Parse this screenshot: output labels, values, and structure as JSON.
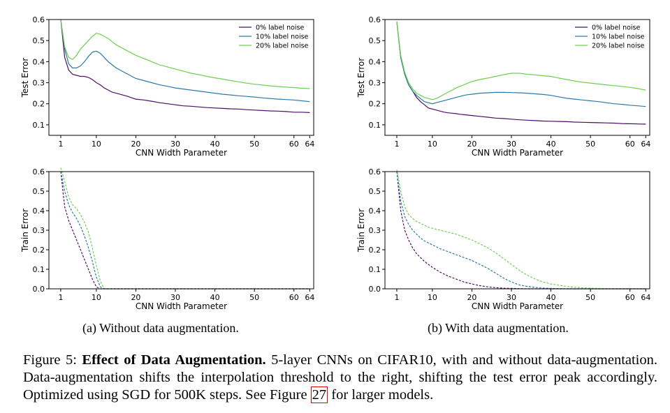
{
  "colors": {
    "noise0": "#4b0e63",
    "noise10": "#2a79a8",
    "noise20": "#6fcf52",
    "ref": "#e00000"
  },
  "chart_data": [
    {
      "type": "line",
      "id": "a-test",
      "xlabel": "CNN Width Parameter",
      "ylabel": "Test Error",
      "xlim": [
        -2,
        65
      ],
      "ylim": [
        0.05,
        0.6
      ],
      "xticks": [
        1,
        10,
        20,
        30,
        40,
        50,
        60,
        64
      ],
      "yticks": [
        0.1,
        0.2,
        0.3,
        0.4,
        0.5,
        0.6
      ],
      "ytick_labels": [
        "0.1",
        "0.2",
        "0.3",
        "0.4",
        "0.5",
        "0.6"
      ],
      "linestyle": "solid",
      "legend": [
        "0% label noise",
        "10% label noise",
        "20% label noise"
      ],
      "series": [
        {
          "name": "0% label noise",
          "x": [
            1,
            2,
            3,
            4,
            5,
            6,
            7,
            8,
            9,
            10,
            11,
            12,
            13,
            14,
            15,
            16,
            17,
            18,
            19,
            20,
            22,
            24,
            26,
            28,
            30,
            32,
            34,
            36,
            38,
            40,
            42,
            44,
            46,
            48,
            50,
            52,
            54,
            56,
            58,
            60,
            62,
            64
          ],
          "y": [
            0.6,
            0.42,
            0.36,
            0.34,
            0.335,
            0.33,
            0.33,
            0.325,
            0.315,
            0.3,
            0.29,
            0.275,
            0.265,
            0.255,
            0.25,
            0.245,
            0.24,
            0.235,
            0.228,
            0.222,
            0.218,
            0.212,
            0.205,
            0.2,
            0.195,
            0.19,
            0.188,
            0.185,
            0.182,
            0.18,
            0.178,
            0.176,
            0.175,
            0.172,
            0.17,
            0.168,
            0.166,
            0.165,
            0.163,
            0.16,
            0.16,
            0.158
          ]
        },
        {
          "name": "10% label noise",
          "x": [
            1,
            2,
            3,
            4,
            5,
            6,
            7,
            8,
            9,
            10,
            11,
            12,
            13,
            14,
            15,
            16,
            17,
            18,
            19,
            20,
            22,
            24,
            26,
            28,
            30,
            32,
            34,
            36,
            38,
            40,
            42,
            44,
            46,
            48,
            50,
            52,
            54,
            56,
            58,
            60,
            62,
            64
          ],
          "y": [
            0.6,
            0.46,
            0.39,
            0.37,
            0.37,
            0.38,
            0.4,
            0.425,
            0.445,
            0.45,
            0.44,
            0.42,
            0.4,
            0.385,
            0.37,
            0.36,
            0.35,
            0.34,
            0.33,
            0.32,
            0.31,
            0.3,
            0.29,
            0.283,
            0.275,
            0.27,
            0.265,
            0.26,
            0.255,
            0.25,
            0.245,
            0.242,
            0.238,
            0.235,
            0.232,
            0.228,
            0.225,
            0.222,
            0.22,
            0.218,
            0.214,
            0.21
          ]
        },
        {
          "name": "20% label noise",
          "x": [
            1,
            2,
            3,
            4,
            5,
            6,
            7,
            8,
            9,
            10,
            11,
            12,
            13,
            14,
            15,
            16,
            17,
            18,
            19,
            20,
            22,
            24,
            26,
            28,
            30,
            32,
            34,
            36,
            38,
            40,
            42,
            44,
            46,
            48,
            50,
            52,
            54,
            56,
            58,
            60,
            62,
            64
          ],
          "y": [
            0.6,
            0.47,
            0.42,
            0.41,
            0.43,
            0.46,
            0.48,
            0.5,
            0.52,
            0.535,
            0.53,
            0.52,
            0.51,
            0.495,
            0.48,
            0.47,
            0.46,
            0.45,
            0.44,
            0.43,
            0.415,
            0.4,
            0.385,
            0.375,
            0.365,
            0.355,
            0.345,
            0.338,
            0.33,
            0.323,
            0.317,
            0.31,
            0.304,
            0.298,
            0.293,
            0.289,
            0.285,
            0.282,
            0.279,
            0.277,
            0.274,
            0.272
          ]
        }
      ]
    },
    {
      "type": "line",
      "id": "b-test",
      "xlabel": "CNN Width Parameter",
      "ylabel": "Test Error",
      "xlim": [
        -2,
        65
      ],
      "ylim": [
        0.05,
        0.6
      ],
      "xticks": [
        1,
        10,
        20,
        30,
        40,
        50,
        60,
        64
      ],
      "yticks": [
        0.1,
        0.2,
        0.3,
        0.4,
        0.5,
        0.6
      ],
      "ytick_labels": [
        "0.1",
        "0.2",
        "0.3",
        "0.4",
        "0.5",
        "0.6"
      ],
      "linestyle": "solid",
      "legend": [
        "0% label noise",
        "10% label noise",
        "20% label noise"
      ],
      "series": [
        {
          "name": "0% label noise",
          "x": [
            1,
            2,
            3,
            4,
            5,
            6,
            7,
            8,
            9,
            10,
            11,
            12,
            13,
            14,
            15,
            16,
            17,
            18,
            19,
            20,
            22,
            24,
            26,
            28,
            30,
            32,
            34,
            36,
            38,
            40,
            42,
            44,
            46,
            48,
            50,
            52,
            54,
            56,
            58,
            60,
            62,
            64
          ],
          "y": [
            0.59,
            0.42,
            0.34,
            0.29,
            0.26,
            0.23,
            0.21,
            0.195,
            0.18,
            0.175,
            0.17,
            0.165,
            0.16,
            0.157,
            0.155,
            0.153,
            0.15,
            0.148,
            0.146,
            0.144,
            0.14,
            0.136,
            0.132,
            0.13,
            0.127,
            0.124,
            0.122,
            0.12,
            0.118,
            0.117,
            0.116,
            0.115,
            0.113,
            0.112,
            0.111,
            0.11,
            0.109,
            0.108,
            0.106,
            0.105,
            0.104,
            0.103
          ]
        },
        {
          "name": "10% label noise",
          "x": [
            1,
            2,
            3,
            4,
            5,
            6,
            7,
            8,
            9,
            10,
            11,
            12,
            13,
            14,
            15,
            16,
            17,
            18,
            19,
            20,
            22,
            24,
            26,
            28,
            30,
            32,
            34,
            36,
            38,
            40,
            42,
            44,
            46,
            48,
            50,
            52,
            54,
            56,
            58,
            60,
            62,
            64
          ],
          "y": [
            0.59,
            0.42,
            0.34,
            0.29,
            0.26,
            0.24,
            0.225,
            0.21,
            0.205,
            0.2,
            0.205,
            0.21,
            0.215,
            0.22,
            0.225,
            0.23,
            0.235,
            0.24,
            0.243,
            0.245,
            0.25,
            0.252,
            0.254,
            0.254,
            0.253,
            0.252,
            0.25,
            0.247,
            0.244,
            0.24,
            0.233,
            0.226,
            0.222,
            0.218,
            0.214,
            0.21,
            0.205,
            0.2,
            0.197,
            0.193,
            0.19,
            0.187
          ]
        },
        {
          "name": "20% label noise",
          "x": [
            1,
            2,
            3,
            4,
            5,
            6,
            7,
            8,
            9,
            10,
            11,
            12,
            13,
            14,
            15,
            16,
            17,
            18,
            19,
            20,
            22,
            24,
            26,
            28,
            30,
            32,
            34,
            36,
            38,
            40,
            42,
            44,
            46,
            48,
            50,
            52,
            54,
            56,
            58,
            60,
            62,
            64
          ],
          "y": [
            0.59,
            0.43,
            0.35,
            0.3,
            0.27,
            0.25,
            0.24,
            0.23,
            0.225,
            0.22,
            0.225,
            0.235,
            0.245,
            0.255,
            0.265,
            0.275,
            0.283,
            0.29,
            0.298,
            0.305,
            0.315,
            0.322,
            0.33,
            0.338,
            0.345,
            0.345,
            0.34,
            0.337,
            0.333,
            0.33,
            0.322,
            0.315,
            0.308,
            0.302,
            0.298,
            0.294,
            0.29,
            0.286,
            0.282,
            0.278,
            0.272,
            0.265
          ]
        }
      ]
    },
    {
      "type": "line",
      "id": "a-train",
      "xlabel": "CNN Width Parameter",
      "ylabel": "Train Error",
      "xlim": [
        -2,
        65
      ],
      "ylim": [
        0.0,
        0.6
      ],
      "xticks": [
        1,
        10,
        20,
        30,
        40,
        50,
        60,
        64
      ],
      "yticks": [
        0.0,
        0.1,
        0.2,
        0.3,
        0.4,
        0.5,
        0.6
      ],
      "ytick_labels": [
        "0.0",
        "0.1",
        "0.2",
        "0.3",
        "0.4",
        "0.5",
        "0.6"
      ],
      "linestyle": "dashed",
      "series": [
        {
          "name": "0% label noise",
          "x": [
            1,
            2,
            3,
            4,
            5,
            6,
            7,
            8,
            9,
            10,
            11,
            12,
            14,
            20,
            30,
            40,
            50,
            60,
            64
          ],
          "y": [
            0.6,
            0.42,
            0.35,
            0.3,
            0.25,
            0.2,
            0.15,
            0.1,
            0.05,
            0.01,
            0.0,
            0.0,
            0.0,
            0.0,
            0.0,
            0.0,
            0.0,
            0.0,
            0.0
          ]
        },
        {
          "name": "10% label noise",
          "x": [
            1,
            2,
            3,
            4,
            5,
            6,
            7,
            8,
            9,
            10,
            11,
            12,
            14,
            20,
            30,
            40,
            50,
            60,
            64
          ],
          "y": [
            0.6,
            0.5,
            0.43,
            0.39,
            0.36,
            0.32,
            0.27,
            0.21,
            0.14,
            0.06,
            0.01,
            0.0,
            0.0,
            0.0,
            0.0,
            0.0,
            0.0,
            0.0,
            0.0
          ]
        },
        {
          "name": "20% label noise",
          "x": [
            1,
            2,
            3,
            4,
            5,
            6,
            7,
            8,
            9,
            10,
            11,
            12,
            14,
            20,
            30,
            40,
            50,
            60,
            64
          ],
          "y": [
            0.62,
            0.55,
            0.47,
            0.43,
            0.41,
            0.38,
            0.34,
            0.29,
            0.21,
            0.12,
            0.04,
            0.0,
            0.0,
            0.0,
            0.0,
            0.0,
            0.0,
            0.0,
            0.0
          ]
        }
      ]
    },
    {
      "type": "line",
      "id": "b-train",
      "xlabel": "CNN Width Parameter",
      "ylabel": "Train Error",
      "xlim": [
        -2,
        65
      ],
      "ylim": [
        0.0,
        0.6
      ],
      "xticks": [
        1,
        10,
        20,
        30,
        40,
        50,
        60,
        64
      ],
      "yticks": [
        0.0,
        0.1,
        0.2,
        0.3,
        0.4,
        0.5,
        0.6
      ],
      "ytick_labels": [
        "0.0",
        "0.1",
        "0.2",
        "0.3",
        "0.4",
        "0.5",
        "0.6"
      ],
      "linestyle": "dashed",
      "series": [
        {
          "name": "0% label noise",
          "x": [
            1,
            2,
            3,
            4,
            5,
            6,
            7,
            8,
            9,
            10,
            12,
            14,
            16,
            18,
            20,
            22,
            24,
            26,
            28,
            30,
            32,
            34,
            36,
            38,
            40,
            44,
            48,
            52,
            56,
            60,
            64
          ],
          "y": [
            0.6,
            0.4,
            0.3,
            0.25,
            0.21,
            0.18,
            0.16,
            0.14,
            0.125,
            0.11,
            0.085,
            0.065,
            0.05,
            0.035,
            0.025,
            0.016,
            0.01,
            0.006,
            0.003,
            0.002,
            0.001,
            0.0,
            0.0,
            0.0,
            0.0,
            0.0,
            0.0,
            0.0,
            0.0,
            0.0,
            0.0
          ]
        },
        {
          "name": "10% label noise",
          "x": [
            1,
            2,
            3,
            4,
            5,
            6,
            7,
            8,
            9,
            10,
            12,
            14,
            16,
            18,
            20,
            22,
            24,
            26,
            28,
            30,
            32,
            34,
            36,
            38,
            40,
            44,
            48,
            52,
            56,
            60,
            64
          ],
          "y": [
            0.6,
            0.45,
            0.37,
            0.33,
            0.3,
            0.28,
            0.26,
            0.245,
            0.235,
            0.225,
            0.205,
            0.19,
            0.175,
            0.16,
            0.145,
            0.125,
            0.105,
            0.08,
            0.055,
            0.035,
            0.02,
            0.012,
            0.007,
            0.004,
            0.002,
            0.0,
            0.0,
            0.0,
            0.0,
            0.0,
            0.0
          ]
        },
        {
          "name": "20% label noise",
          "x": [
            1,
            2,
            3,
            4,
            5,
            6,
            7,
            8,
            9,
            10,
            12,
            14,
            16,
            18,
            20,
            22,
            24,
            26,
            28,
            30,
            32,
            34,
            36,
            38,
            40,
            44,
            48,
            52,
            56,
            60,
            64
          ],
          "y": [
            0.61,
            0.5,
            0.42,
            0.38,
            0.36,
            0.345,
            0.335,
            0.325,
            0.315,
            0.31,
            0.3,
            0.29,
            0.28,
            0.265,
            0.25,
            0.23,
            0.21,
            0.185,
            0.155,
            0.125,
            0.095,
            0.07,
            0.05,
            0.035,
            0.025,
            0.012,
            0.005,
            0.002,
            0.0,
            0.0,
            0.0
          ]
        }
      ]
    }
  ],
  "captions": {
    "a": "(a) Without data augmentation.",
    "b": "(b) With data augmentation.",
    "figure": {
      "label": "Figure 5:",
      "title": "Effect of Data Augmentation.",
      "body1": "5-layer CNNs on CIFAR10, with and without data-augmentation. Data-augmentation shifts the interpolation threshold to the right, shifting the test error peak accordingly. Optimized using SGD for 500K steps. See Figure",
      "ref": "27",
      "body2": "for larger models."
    }
  }
}
